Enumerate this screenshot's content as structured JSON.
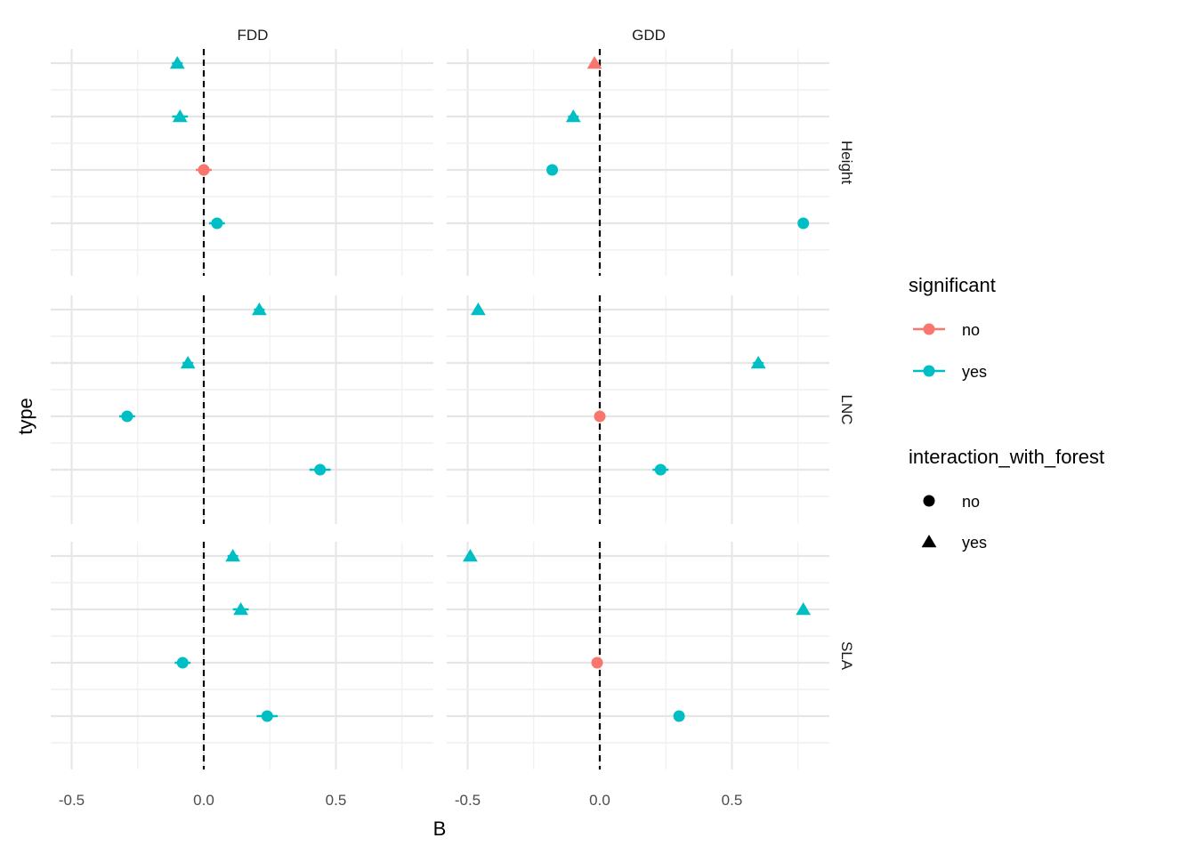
{
  "chart_data": {
    "type": "scatter",
    "title": "",
    "xlabel": "B",
    "ylabel": "type",
    "xlim": [
      -0.55,
      0.88
    ],
    "x_ticks": [
      "-0.5",
      "0.0",
      "0.5"
    ],
    "x_tick_values": [
      -0.5,
      0.0,
      0.5
    ],
    "reference_line": {
      "x": 0,
      "style": "dashed"
    },
    "grid": true,
    "columns": [
      "FDD",
      "GDD"
    ],
    "rows": [
      "Height",
      "LNC",
      "SLA"
    ],
    "rows_per_panel": 4,
    "colors": {
      "no": "#F8766D",
      "yes": "#00BFC4"
    },
    "legend": {
      "position": "right",
      "color_title": "significant",
      "color_entries": [
        "no",
        "yes"
      ],
      "shape_title": "interaction_with_forest",
      "shape_entries": [
        {
          "label": "no",
          "shape": "circle"
        },
        {
          "label": "yes",
          "shape": "triangle"
        }
      ]
    },
    "series": [
      {
        "column": "FDD",
        "row": "Height",
        "points": [
          {
            "slot": 1,
            "x": -0.1,
            "err": 0.02,
            "significant": "yes",
            "interaction": "yes"
          },
          {
            "slot": 2,
            "x": -0.09,
            "err": 0.03,
            "significant": "yes",
            "interaction": "yes"
          },
          {
            "slot": 3,
            "x": 0.0,
            "err": 0.03,
            "significant": "no",
            "interaction": "no"
          },
          {
            "slot": 4,
            "x": 0.05,
            "err": 0.03,
            "significant": "yes",
            "interaction": "no"
          }
        ]
      },
      {
        "column": "GDD",
        "row": "Height",
        "points": [
          {
            "slot": 1,
            "x": -0.02,
            "err": 0.01,
            "significant": "no",
            "interaction": "yes"
          },
          {
            "slot": 2,
            "x": -0.1,
            "err": 0.02,
            "significant": "yes",
            "interaction": "yes"
          },
          {
            "slot": 3,
            "x": -0.18,
            "err": 0.01,
            "significant": "yes",
            "interaction": "no"
          },
          {
            "slot": 4,
            "x": 0.77,
            "err": 0.02,
            "significant": "yes",
            "interaction": "no"
          }
        ]
      },
      {
        "column": "FDD",
        "row": "LNC",
        "points": [
          {
            "slot": 1,
            "x": 0.21,
            "err": 0.02,
            "significant": "yes",
            "interaction": "yes"
          },
          {
            "slot": 2,
            "x": -0.06,
            "err": 0.02,
            "significant": "yes",
            "interaction": "yes"
          },
          {
            "slot": 3,
            "x": -0.29,
            "err": 0.03,
            "significant": "yes",
            "interaction": "no"
          },
          {
            "slot": 4,
            "x": 0.44,
            "err": 0.04,
            "significant": "yes",
            "interaction": "no"
          }
        ]
      },
      {
        "column": "GDD",
        "row": "LNC",
        "points": [
          {
            "slot": 1,
            "x": -0.46,
            "err": 0.01,
            "significant": "yes",
            "interaction": "yes"
          },
          {
            "slot": 2,
            "x": 0.6,
            "err": 0.02,
            "significant": "yes",
            "interaction": "yes"
          },
          {
            "slot": 3,
            "x": 0.0,
            "err": 0.01,
            "significant": "no",
            "interaction": "no"
          },
          {
            "slot": 4,
            "x": 0.23,
            "err": 0.03,
            "significant": "yes",
            "interaction": "no"
          }
        ]
      },
      {
        "column": "FDD",
        "row": "SLA",
        "points": [
          {
            "slot": 1,
            "x": 0.11,
            "err": 0.02,
            "significant": "yes",
            "interaction": "yes"
          },
          {
            "slot": 2,
            "x": 0.14,
            "err": 0.03,
            "significant": "yes",
            "interaction": "yes"
          },
          {
            "slot": 3,
            "x": -0.08,
            "err": 0.03,
            "significant": "yes",
            "interaction": "no"
          },
          {
            "slot": 4,
            "x": 0.24,
            "err": 0.04,
            "significant": "yes",
            "interaction": "no"
          }
        ]
      },
      {
        "column": "GDD",
        "row": "SLA",
        "points": [
          {
            "slot": 1,
            "x": -0.49,
            "err": 0.01,
            "significant": "yes",
            "interaction": "yes"
          },
          {
            "slot": 2,
            "x": 0.77,
            "err": 0.01,
            "significant": "yes",
            "interaction": "yes"
          },
          {
            "slot": 3,
            "x": -0.01,
            "err": 0.01,
            "significant": "no",
            "interaction": "no"
          },
          {
            "slot": 4,
            "x": 0.3,
            "err": 0.02,
            "significant": "yes",
            "interaction": "no"
          }
        ]
      }
    ]
  }
}
